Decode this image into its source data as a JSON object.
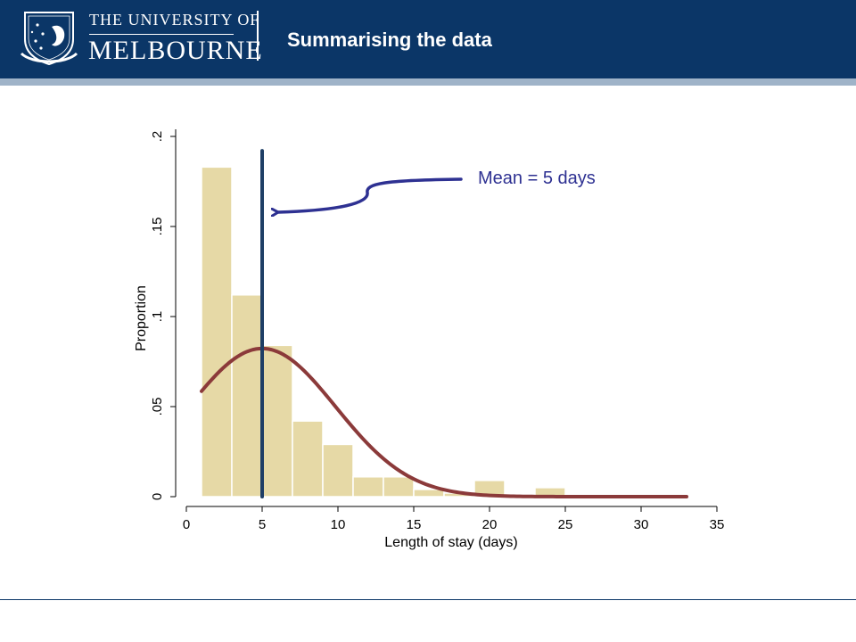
{
  "header": {
    "university_line1": "THE UNIVERSITY OF",
    "university_line2": "MELBOURNE",
    "slide_title": "Summarising the data",
    "background_color": "#0b3667",
    "crest_icon": "university-crest"
  },
  "chart_data": {
    "type": "bar",
    "xlabel": "Length of stay (days)",
    "ylabel": "Proportion",
    "xlim": [
      0,
      35
    ],
    "ylim": [
      0,
      0.2
    ],
    "x_ticks": [
      "0",
      "5",
      "10",
      "15",
      "20",
      "25",
      "30",
      "35"
    ],
    "y_ticks": [
      ".2",
      ".15",
      ".1",
      ".05",
      "0"
    ],
    "bins": [
      {
        "from": 1,
        "to": 3,
        "value": 0.183
      },
      {
        "from": 3,
        "to": 5,
        "value": 0.112
      },
      {
        "from": 5,
        "to": 7,
        "value": 0.084
      },
      {
        "from": 7,
        "to": 9,
        "value": 0.042
      },
      {
        "from": 9,
        "to": 11,
        "value": 0.029
      },
      {
        "from": 11,
        "to": 13,
        "value": 0.011
      },
      {
        "from": 13,
        "to": 15,
        "value": 0.011
      },
      {
        "from": 15,
        "to": 17,
        "value": 0.004
      },
      {
        "from": 17,
        "to": 19,
        "value": 0.002
      },
      {
        "from": 19,
        "to": 21,
        "value": 0.009
      },
      {
        "from": 21,
        "to": 23,
        "value": 0.001
      },
      {
        "from": 23,
        "to": 25,
        "value": 0.005
      },
      {
        "from": 25,
        "to": 27,
        "value": 0.001
      },
      {
        "from": 27,
        "to": 29,
        "value": 0.0
      },
      {
        "from": 29,
        "to": 31,
        "value": 0.0
      },
      {
        "from": 31,
        "to": 33,
        "value": 0.001
      }
    ],
    "normal_curve": {
      "mean": 5,
      "sd": 4.85,
      "x_from": 1,
      "x_to": 33
    },
    "mean_line": {
      "x": 5,
      "y_top": 0.192
    },
    "annotation": {
      "text": "Mean = 5 days"
    },
    "colors": {
      "bars": "#e6d9a6",
      "curve": "#8b3a3a",
      "mean_line": "#1f3f66",
      "annotation": "#2e3192"
    },
    "grid": false,
    "legend": "none"
  }
}
